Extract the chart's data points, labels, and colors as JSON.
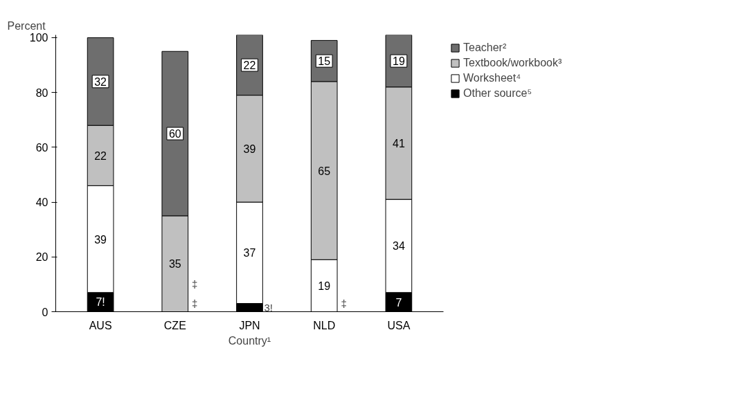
{
  "chart_data": {
    "type": "bar",
    "stacked": true,
    "ylabel": "Percent",
    "xlabel": "Country¹",
    "categories": [
      "AUS",
      "CZE",
      "JPN",
      "NLD",
      "USA"
    ],
    "series": [
      {
        "name": "Other source⁵",
        "color": "#000000",
        "values": [
          7,
          null,
          3,
          null,
          7
        ],
        "value_labels": [
          "7!",
          "‡",
          "3!",
          "‡",
          "7"
        ]
      },
      {
        "name": "Worksheet⁴",
        "color": "#ffffff",
        "values": [
          39,
          null,
          37,
          19,
          34
        ],
        "value_labels": [
          "39",
          "‡",
          "37",
          "19",
          "34"
        ]
      },
      {
        "name": "Textbook/workbook³",
        "color": "#c0c0c0",
        "values": [
          22,
          35,
          39,
          65,
          41
        ],
        "value_labels": [
          "22",
          "35",
          "39",
          "65",
          "41"
        ]
      },
      {
        "name": "Teacher²",
        "color": "#6e6e6e",
        "values": [
          32,
          60,
          22,
          15,
          19
        ],
        "value_labels": [
          "32",
          "60",
          "22",
          "15",
          "19"
        ]
      }
    ],
    "ylim": [
      0,
      101
    ],
    "yticks": [
      0,
      20,
      40,
      60,
      80,
      100
    ],
    "grid": false,
    "legend": "top right"
  }
}
